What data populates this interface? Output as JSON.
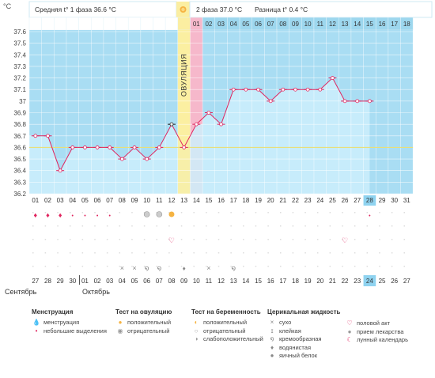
{
  "header": {
    "unit": "°C",
    "phase1_label": "Средняя t° 1 фаза 36.6 °C",
    "phase2_label": "2 фаза 37.0 °C",
    "diff_label": "Разница t° 0.4 °C",
    "cycle_days": [
      "01",
      "02",
      "03",
      "04",
      "05",
      "06",
      "07",
      "08",
      "09",
      "10",
      "11",
      "12",
      "13",
      "14",
      "15",
      "16",
      "17",
      "18",
      "19",
      "20",
      "21",
      "22",
      "23",
      "24",
      "25",
      "26",
      "27",
      "28",
      "29",
      "30",
      "31"
    ],
    "second_phase_days": [
      "01",
      "02",
      "03",
      "04",
      "05",
      "06",
      "07",
      "08",
      "09",
      "10",
      "11",
      "12",
      "13",
      "14",
      "15",
      "16",
      "17",
      "18"
    ],
    "ovulation_text": "ОВУЛЯЦИЯ"
  },
  "chart_data": {
    "type": "line",
    "title": "",
    "xlabel": "",
    "ylabel": "°C",
    "ylim": [
      36.2,
      37.6
    ],
    "yticks": [
      "37.6",
      "37.5",
      "37.4",
      "37.3",
      "37.2",
      "37.1",
      "37",
      "36.9",
      "36.8",
      "36.7",
      "36.6",
      "36.5",
      "36.4",
      "36.3",
      "36.2"
    ],
    "baseline": 36.6,
    "ovulation_day": 13,
    "highlight_column_day": 14,
    "today_day": 28,
    "x": [
      1,
      2,
      3,
      4,
      5,
      6,
      7,
      8,
      9,
      10,
      11,
      12,
      13,
      14,
      15,
      16,
      17,
      18,
      19,
      20,
      21,
      22,
      23,
      24,
      25,
      26,
      27,
      28
    ],
    "values": [
      36.7,
      36.7,
      36.4,
      36.6,
      36.6,
      36.6,
      36.6,
      36.5,
      36.6,
      36.5,
      36.6,
      36.8,
      36.6,
      36.8,
      36.9,
      36.8,
      37.1,
      37.1,
      37.1,
      37.0,
      37.1,
      37.1,
      37.1,
      37.1,
      37.2,
      37.0,
      37.0,
      37.0
    ],
    "x_labels": [
      "01",
      "02",
      "03",
      "04",
      "05",
      "06",
      "07",
      "08",
      "09",
      "10",
      "11",
      "12",
      "13",
      "14",
      "15",
      "16",
      "17",
      "18",
      "19",
      "20",
      "21",
      "22",
      "23",
      "24",
      "25",
      "26",
      "27",
      "28",
      "29",
      "30",
      "31"
    ],
    "dates": [
      "27",
      "28",
      "29",
      "30",
      "01",
      "02",
      "03",
      "04",
      "05",
      "06",
      "07",
      "08",
      "09",
      "10",
      "11",
      "12",
      "13",
      "14",
      "15",
      "16",
      "17",
      "18",
      "19",
      "20",
      "21",
      "22",
      "23",
      "24",
      "25",
      "26",
      "27"
    ],
    "date_colors": [
      "#333",
      "#333",
      "#333",
      "#333",
      "#e0245e",
      "#e0245e",
      "#333",
      "#333",
      "#333",
      "#333",
      "#333",
      "#e0245e",
      "#e0245e",
      "#333",
      "#333",
      "#333",
      "#333",
      "#333",
      "#e0245e",
      "#e0245e",
      "#333",
      "#333",
      "#333",
      "#333",
      "#333",
      "#e0245e",
      "#e0245e",
      "#333",
      "#333",
      "#333",
      "#333"
    ]
  },
  "markers": {
    "menstruation_big": [
      1,
      2,
      3
    ],
    "menstruation_small": [
      4,
      5,
      6,
      7,
      28
    ],
    "ovulation_test_negative": [
      10,
      11
    ],
    "ovulation_test_positive": [
      12
    ],
    "intercourse": [
      12,
      26
    ],
    "fluid_dry": [
      8,
      9
    ],
    "fluid_creamy": [
      10,
      11
    ],
    "fluid_watery": [
      13
    ],
    "fluid_dry2": [
      15
    ],
    "fluid_creamy2": [
      17
    ]
  },
  "months": {
    "left": "Сентябрь",
    "right": "Октябрь"
  },
  "legend": {
    "menstruation": {
      "title": "Менструация",
      "items": [
        {
          "icon": "menstruation-drops-icon",
          "label": "менструация"
        },
        {
          "icon": "small-drop-icon",
          "label": "небольшие выделения"
        }
      ]
    },
    "ovulation_test": {
      "title": "Тест на овуляцию",
      "items": [
        {
          "icon": "sun-positive-icon",
          "label": "положительный"
        },
        {
          "icon": "sun-negative-icon",
          "label": "отрицательный"
        }
      ]
    },
    "pregnancy_test": {
      "title": "Тест на беременность",
      "items": [
        {
          "icon": "pregnancy-positive-icon",
          "label": "положительный"
        },
        {
          "icon": "pregnancy-negative-icon",
          "label": "отрицательный"
        },
        {
          "icon": "pregnancy-weak-icon",
          "label": "слабоположительный"
        }
      ]
    },
    "cervical": {
      "title": "Церикальная жидкость",
      "items": [
        {
          "icon": "dry-icon",
          "label": "сухо"
        },
        {
          "icon": "sticky-icon",
          "label": "клейкая"
        },
        {
          "icon": "creamy-icon",
          "label": "кремообразная"
        },
        {
          "icon": "watery-icon",
          "label": "водянистая"
        },
        {
          "icon": "egg-white-icon",
          "label": "яичный белок"
        }
      ]
    },
    "other": {
      "items": [
        {
          "icon": "heart-icon",
          "label": "половой акт"
        },
        {
          "icon": "pill-icon",
          "label": "прием лекарства"
        },
        {
          "icon": "moon-icon",
          "label": "лунный календарь"
        }
      ]
    }
  },
  "colors": {
    "chart_bg": "#a9ddf3",
    "fill_below": "#cdeefb",
    "line": "#e0245e",
    "ovulation_col": "#fbeea1",
    "highlight_col": "#f6b8cb",
    "today": "#8fd3f0",
    "baseline": "#e8df7a",
    "header_blue": "#9dd7ee"
  }
}
